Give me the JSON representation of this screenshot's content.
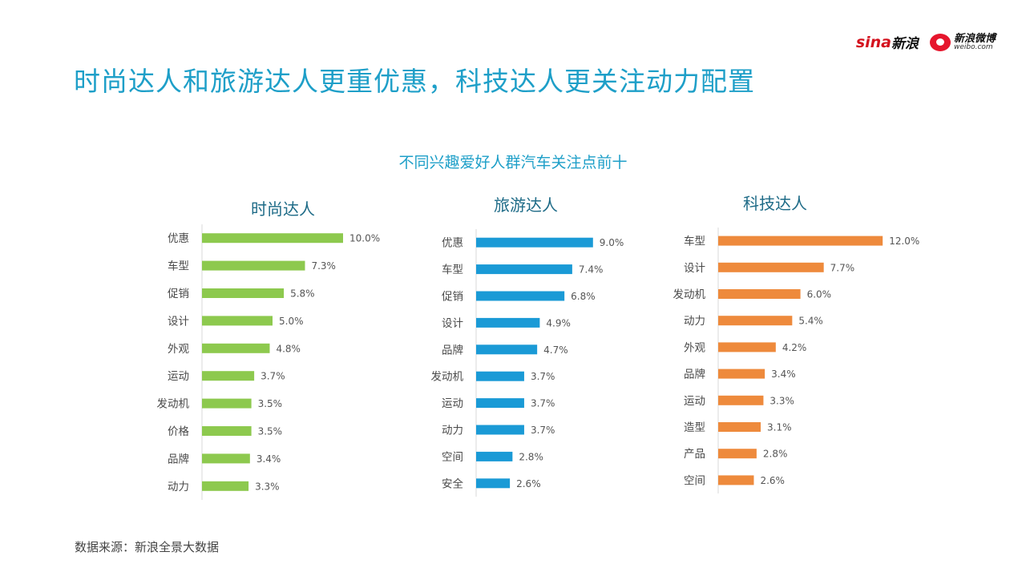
{
  "logos": {
    "sina": {
      "word": "sina",
      "cn": "新浪"
    },
    "weibo": {
      "cn": "新浪微博",
      "en": "weibo.com"
    }
  },
  "page_title": "时尚达人和旅游达人更重优惠，科技达人更关注动力配置",
  "source_note": "数据来源：新浪全景大数据",
  "chart_data": {
    "title": "不同兴趣爱好人群汽车关注点前十",
    "panels": [
      {
        "type": "bar",
        "orientation": "horizontal",
        "title": "时尚达人",
        "color": "#8dc94e",
        "categories": [
          "优惠",
          "车型",
          "促销",
          "设计",
          "外观",
          "运动",
          "发动机",
          "价格",
          "品牌",
          "动力"
        ],
        "values": [
          10.0,
          7.3,
          5.8,
          5.0,
          4.8,
          3.7,
          3.5,
          3.5,
          3.4,
          3.3
        ],
        "value_labels": [
          "10.0%",
          "7.3%",
          "5.8%",
          "5.0%",
          "4.8%",
          "3.7%",
          "3.5%",
          "3.5%",
          "3.4%",
          "3.3%"
        ]
      },
      {
        "type": "bar",
        "orientation": "horizontal",
        "title": "旅游达人",
        "color": "#1a9ad6",
        "categories": [
          "优惠",
          "车型",
          "促销",
          "设计",
          "品牌",
          "发动机",
          "运动",
          "动力",
          "空间",
          "安全"
        ],
        "values": [
          9.0,
          7.4,
          6.8,
          4.9,
          4.7,
          3.7,
          3.7,
          3.7,
          2.8,
          2.6
        ],
        "value_labels": [
          "9.0%",
          "7.4%",
          "6.8%",
          "4.9%",
          "4.7%",
          "3.7%",
          "3.7%",
          "3.7%",
          "2.8%",
          "2.6%"
        ]
      },
      {
        "type": "bar",
        "orientation": "horizontal",
        "title": "科技达人",
        "color": "#ee8a3c",
        "categories": [
          "车型",
          "设计",
          "发动机",
          "动力",
          "外观",
          "品牌",
          "运动",
          "造型",
          "产品",
          "空间"
        ],
        "values": [
          12.0,
          7.7,
          6.0,
          5.4,
          4.2,
          3.4,
          3.3,
          3.1,
          2.8,
          2.6
        ],
        "value_labels": [
          "12.0%",
          "7.7%",
          "6.0%",
          "5.4%",
          "4.2%",
          "3.4%",
          "3.3%",
          "3.1%",
          "2.8%",
          "2.6%"
        ]
      }
    ]
  }
}
